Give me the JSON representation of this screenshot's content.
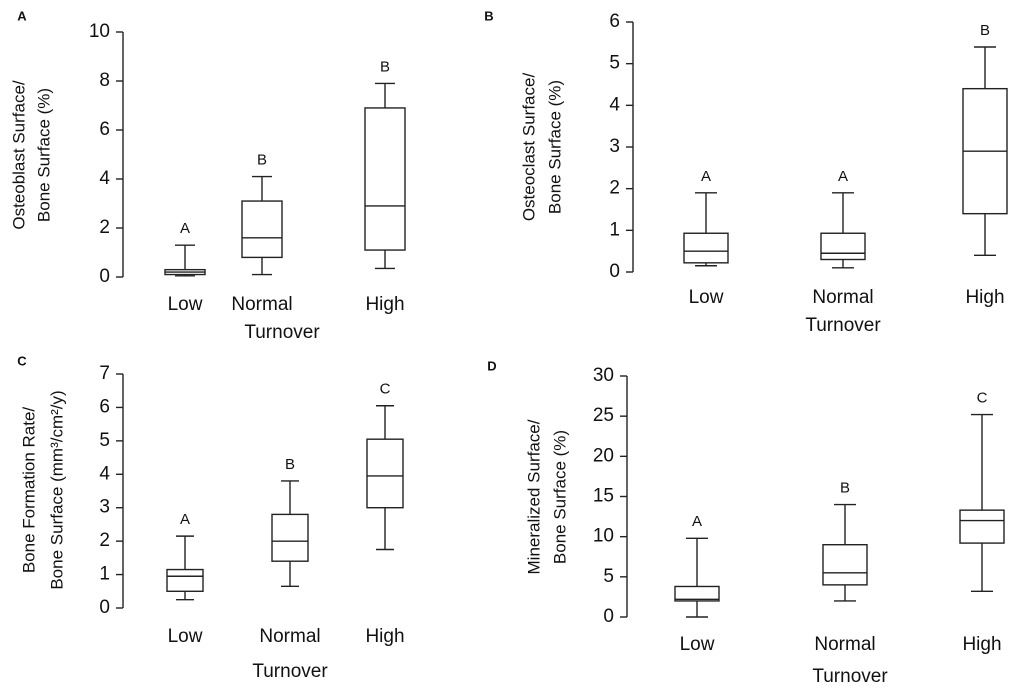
{
  "chart_data": [
    {
      "type": "box",
      "panel_label": "A",
      "ylabel": [
        "Osteoblast Surface/",
        "Bone Surface (%)"
      ],
      "xlabel": "Turnover",
      "categories": [
        "Low",
        "Normal",
        "High"
      ],
      "boxes": [
        {
          "min": 0.05,
          "q1": 0.1,
          "median": 0.2,
          "q3": 0.3,
          "max": 1.3
        },
        {
          "min": 0.1,
          "q1": 0.8,
          "median": 1.6,
          "q3": 3.1,
          "max": 4.1
        },
        {
          "min": 0.35,
          "q1": 1.1,
          "median": 2.9,
          "q3": 6.9,
          "max": 7.9
        }
      ],
      "letters": [
        "A",
        "B",
        "B"
      ],
      "ylim": [
        0,
        10
      ],
      "yticks": [
        0,
        2,
        4,
        6,
        8,
        10
      ]
    },
    {
      "type": "box",
      "panel_label": "B",
      "ylabel": [
        "Osteoclast Surface/",
        "Bone Surface (%)"
      ],
      "xlabel": "Turnover",
      "categories": [
        "Low",
        "Normal",
        "High"
      ],
      "boxes": [
        {
          "min": 0.15,
          "q1": 0.22,
          "median": 0.5,
          "q3": 0.93,
          "max": 1.9
        },
        {
          "min": 0.1,
          "q1": 0.3,
          "median": 0.45,
          "q3": 0.93,
          "max": 1.9
        },
        {
          "min": 0.4,
          "q1": 1.4,
          "median": 2.9,
          "q3": 4.4,
          "max": 5.4
        }
      ],
      "letters": [
        "A",
        "A",
        "B"
      ],
      "ylim": [
        0,
        6
      ],
      "yticks": [
        0,
        1,
        2,
        3,
        4,
        5,
        6
      ]
    },
    {
      "type": "box",
      "panel_label": "C",
      "ylabel": [
        "Bone Formation Rate/",
        "Bone Surface (mm³/cm²/y)"
      ],
      "xlabel": "Turnover",
      "categories": [
        "Low",
        "Normal",
        "High"
      ],
      "boxes": [
        {
          "min": 0.25,
          "q1": 0.5,
          "median": 0.95,
          "q3": 1.15,
          "max": 2.15
        },
        {
          "min": 0.65,
          "q1": 1.4,
          "median": 2.0,
          "q3": 2.8,
          "max": 3.8
        },
        {
          "min": 1.75,
          "q1": 3.0,
          "median": 3.95,
          "q3": 5.05,
          "max": 6.05
        }
      ],
      "letters": [
        "A",
        "B",
        "C"
      ],
      "ylim": [
        0,
        7
      ],
      "yticks": [
        0,
        1,
        2,
        3,
        4,
        5,
        6,
        7
      ]
    },
    {
      "type": "box",
      "panel_label": "D",
      "ylabel": [
        "Mineralized Surface/",
        "Bone Surface (%)"
      ],
      "xlabel": "Turnover",
      "categories": [
        "Low",
        "Normal",
        "High"
      ],
      "boxes": [
        {
          "min": 0,
          "q1": 2.0,
          "median": 2.2,
          "q3": 3.8,
          "max": 9.8
        },
        {
          "min": 2.0,
          "q1": 4.0,
          "median": 5.5,
          "q3": 9.0,
          "max": 14.0
        },
        {
          "min": 3.2,
          "q1": 9.2,
          "median": 12.0,
          "q3": 13.3,
          "max": 25.2
        }
      ],
      "letters": [
        "A",
        "B",
        "C"
      ],
      "ylim": [
        0,
        30
      ],
      "yticks": [
        0,
        5,
        10,
        15,
        20,
        25,
        30
      ]
    }
  ]
}
